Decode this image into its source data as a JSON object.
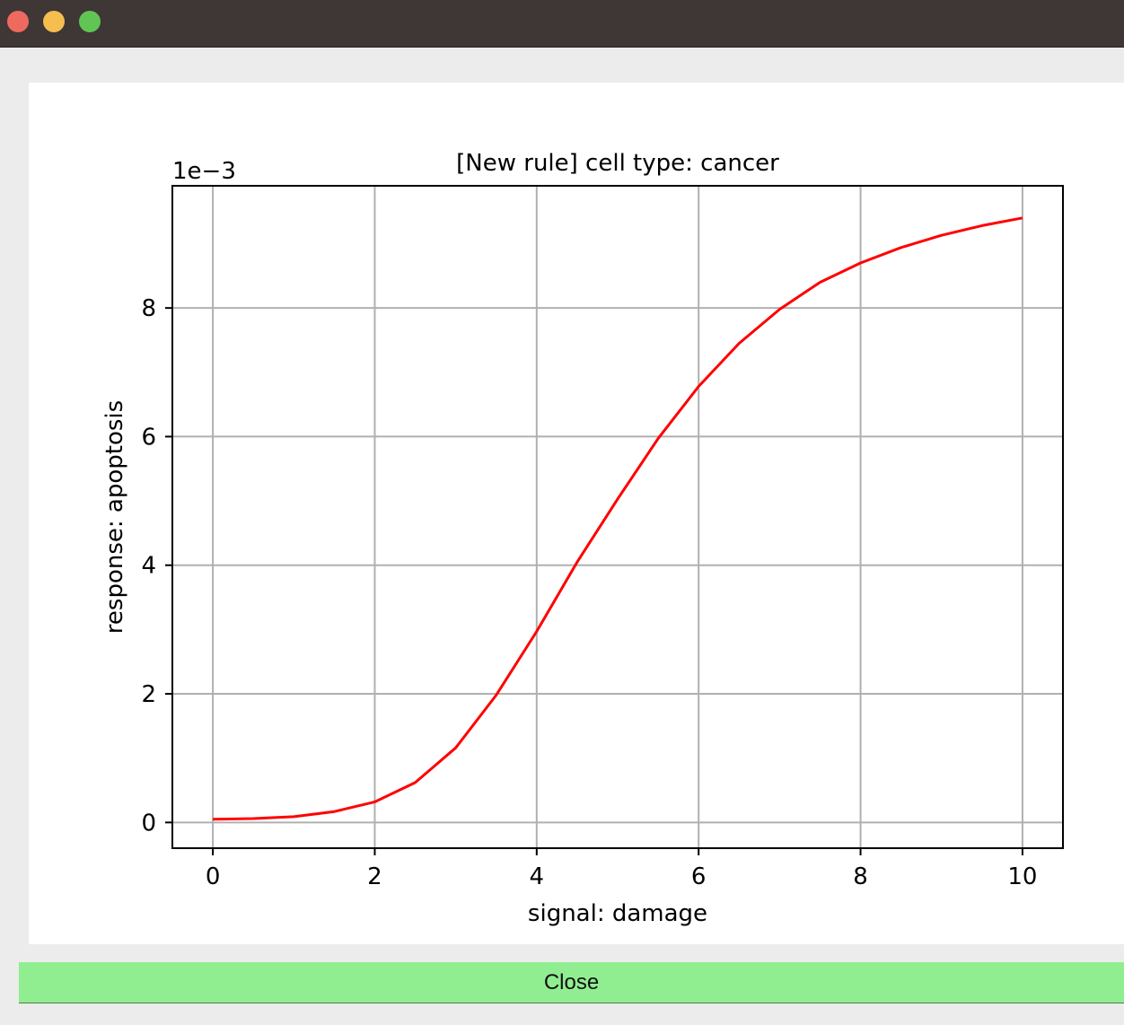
{
  "window": {
    "traffic_lights": [
      "close-icon",
      "minimize-icon",
      "zoom-icon"
    ],
    "colors": {
      "titlebar": "#3f3636",
      "close": "#ee6a5e",
      "minimize": "#f5be4f",
      "zoom": "#61c554"
    }
  },
  "chart_data": {
    "type": "line",
    "title": "[New rule] cell type: cancer",
    "xlabel": "signal: damage",
    "ylabel": "response: apoptosis",
    "y_offset_label": "1e−3",
    "xlim": [
      -0.5,
      10.5
    ],
    "ylim": [
      -0.4,
      9.9
    ],
    "xticks": [
      0,
      2,
      4,
      6,
      8,
      10
    ],
    "yticks": [
      0,
      2,
      4,
      6,
      8
    ],
    "xtick_labels": [
      "0",
      "2",
      "4",
      "6",
      "8",
      "10"
    ],
    "ytick_labels": [
      "0",
      "2",
      "4",
      "6",
      "8"
    ],
    "grid": true,
    "series": [
      {
        "color": "#ff0000",
        "x": [
          0,
          0.5,
          1,
          1.5,
          2,
          2.5,
          3,
          3.5,
          4,
          4.5,
          5,
          5.5,
          6,
          6.5,
          7,
          7.5,
          8,
          8.5,
          9,
          9.5,
          10
        ],
        "y": [
          0.05,
          0.06,
          0.09,
          0.17,
          0.32,
          0.62,
          1.16,
          1.98,
          2.97,
          4.05,
          5.03,
          5.97,
          6.78,
          7.45,
          7.98,
          8.4,
          8.7,
          8.94,
          9.13,
          9.28,
          9.4
        ]
      }
    ]
  },
  "footer": {
    "close_label": "Close",
    "button_color": "#90ee90"
  }
}
